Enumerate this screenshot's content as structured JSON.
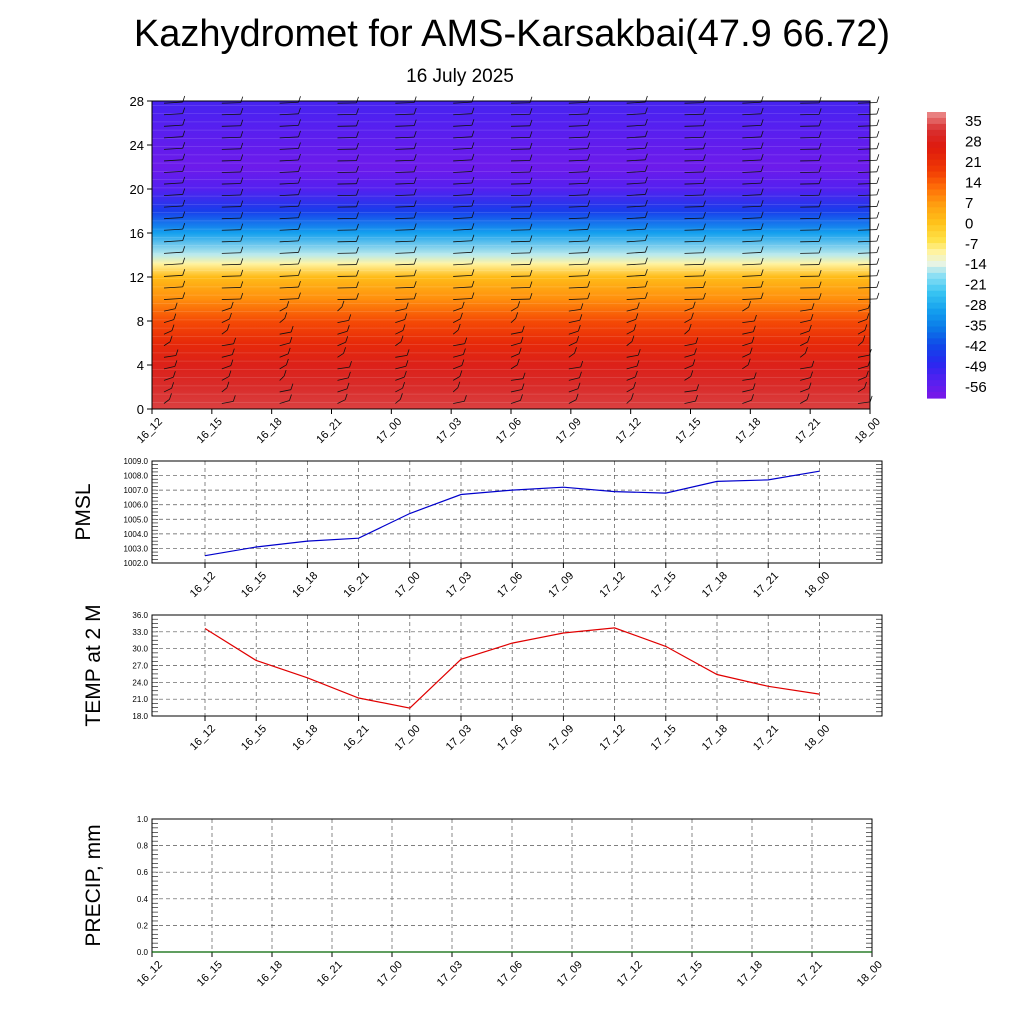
{
  "header": {
    "title": "Kazhydromet for AMS-Karsakbai(47.9 66.72)",
    "date": "16 July 2025"
  },
  "colorbar": {
    "labels": [
      "35",
      "28",
      "21",
      "14",
      "7",
      "0",
      "-7",
      "-14",
      "-21",
      "-28",
      "-35",
      "-42",
      "-49",
      "-56"
    ]
  },
  "chart_data": [
    {
      "type": "heatmap",
      "name": "temperature-wind-cross-section",
      "x_labels": [
        "16_12",
        "16_15",
        "16_18",
        "16_21",
        "17_00",
        "17_03",
        "17_06",
        "17_09",
        "17_12",
        "17_15",
        "17_18",
        "17_21",
        "18_00"
      ],
      "y_ticks": [
        0,
        4,
        8,
        12,
        16,
        20,
        24,
        28
      ],
      "ylim": [
        0,
        28
      ],
      "value_range": [
        -60,
        38
      ],
      "value_profile": {
        "heights": [
          0,
          2,
          4,
          6,
          8,
          10,
          12,
          13.2,
          14,
          16,
          18,
          20,
          22,
          24,
          26,
          28
        ],
        "temperature": [
          33,
          31,
          28,
          22,
          16,
          8,
          1,
          -10,
          -16,
          -30,
          -44,
          -54,
          -58,
          -56,
          -54,
          -52
        ]
      },
      "wind_barbs": true
    },
    {
      "type": "line",
      "name": "pmsl",
      "ylabel": "PMSL",
      "x_labels": [
        "16_12",
        "16_15",
        "16_18",
        "16_21",
        "17_00",
        "17_03",
        "17_06",
        "17_09",
        "17_12",
        "17_15",
        "17_18",
        "17_21",
        "18_00"
      ],
      "y_ticks": [
        "1002.0",
        "1003.0",
        "1004.0",
        "1005.0",
        "1006.0",
        "1007.0",
        "1008.0",
        "1009.0"
      ],
      "ylim": [
        1002,
        1009
      ],
      "values": [
        1002.5,
        1003.1,
        1003.5,
        1003.7,
        1005.4,
        1006.7,
        1007.0,
        1007.2,
        1006.9,
        1006.8,
        1007.6,
        1007.7,
        1008.3
      ],
      "color": "#0000cc"
    },
    {
      "type": "line",
      "name": "temp-2m",
      "ylabel": "TEMP at 2 M",
      "x_labels": [
        "16_12",
        "16_15",
        "16_18",
        "16_21",
        "17_00",
        "17_03",
        "17_06",
        "17_09",
        "17_12",
        "17_15",
        "17_18",
        "17_21",
        "18_00"
      ],
      "y_ticks": [
        "18.0",
        "21.0",
        "24.0",
        "27.0",
        "30.0",
        "33.0",
        "36.0"
      ],
      "ylim": [
        18,
        36
      ],
      "values": [
        33.6,
        27.9,
        24.8,
        21.2,
        19.4,
        28.1,
        31.0,
        32.8,
        33.7,
        30.4,
        25.4,
        23.3,
        21.9
      ],
      "color": "#e00000"
    },
    {
      "type": "line",
      "name": "precip",
      "ylabel": "PRECIP, mm",
      "x_labels": [
        "16_12",
        "16_15",
        "16_18",
        "16_21",
        "17_00",
        "17_03",
        "17_06",
        "17_09",
        "17_12",
        "17_15",
        "17_18",
        "17_21",
        "18_00"
      ],
      "y_ticks": [
        "0.0",
        "0.2",
        "0.4",
        "0.6",
        "0.8",
        "1.0"
      ],
      "ylim": [
        0,
        1
      ],
      "values": [
        0,
        0,
        0,
        0,
        0,
        0,
        0,
        0,
        0,
        0,
        0,
        0,
        0
      ],
      "color": "#006400"
    }
  ]
}
